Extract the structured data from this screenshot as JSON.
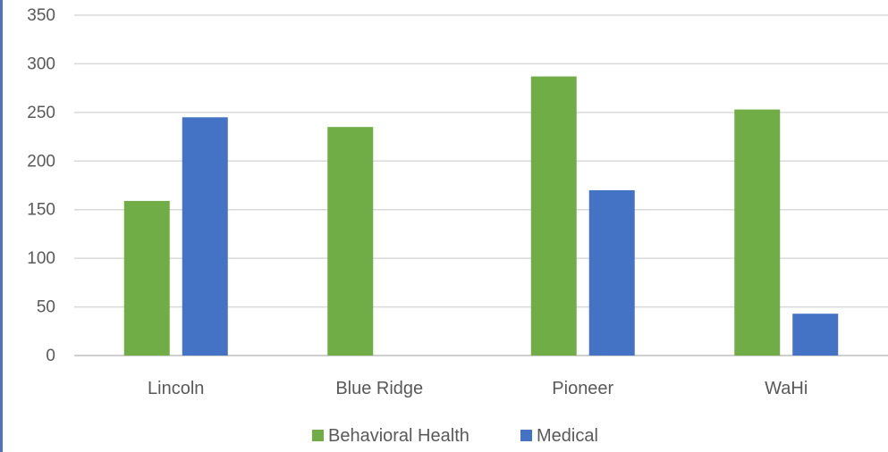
{
  "chart_data": {
    "type": "bar",
    "categories": [
      "Lincoln",
      "Blue Ridge",
      "Pioneer",
      "WaHi"
    ],
    "series": [
      {
        "name": "Behavioral Health",
        "color": "#70ad47",
        "values": [
          159,
          235,
          287,
          253
        ]
      },
      {
        "name": "Medical",
        "color": "#4472c4",
        "values": [
          245,
          0,
          170,
          43
        ]
      }
    ],
    "yticks": [
      0,
      50,
      100,
      150,
      200,
      250,
      300,
      350
    ],
    "ylim": [
      0,
      350
    ],
    "grid": true,
    "legend": "bottom"
  }
}
